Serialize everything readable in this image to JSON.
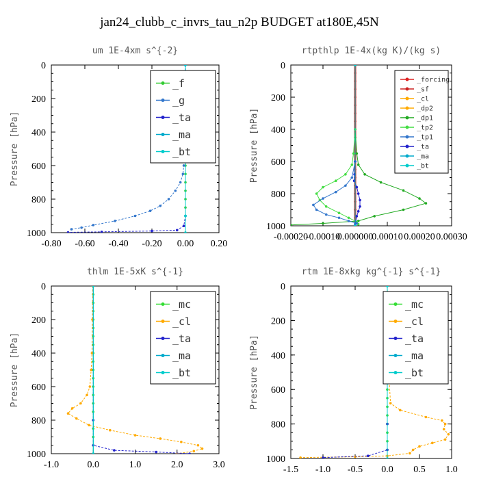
{
  "figure": {
    "title": "jan24_clubb_c_invrs_tau_n2p  BUDGET at180E,45N"
  },
  "colors": {
    "forcing": "#dd2222",
    "sf": "#cc2222",
    "cl": "#ffaa00",
    "dp2": "#ffaa00",
    "dp1": "#22aa22",
    "tp2": "#44dd44",
    "tp1": "#3377cc",
    "ta": "#2222cc",
    "ma": "#00aacc",
    "bt": "#00cccc",
    "mc": "#33dd33",
    "f": "#33cc33",
    "g": "#3377cc",
    "axis": "#000000",
    "text": "#555555"
  },
  "chart_data": [
    {
      "type": "line",
      "title": "um   1E-4xm s^{-2}",
      "ylabel": "Pressure [hPa]",
      "xlabel": "",
      "xlim": [
        -0.8,
        0.2
      ],
      "ylim": [
        1000,
        0
      ],
      "xticks": [
        -0.8,
        -0.6,
        -0.4,
        -0.2,
        0.0,
        0.2
      ],
      "xtick_labels": [
        "-0.80",
        "-0.60",
        "-0.40",
        "-0.20",
        "0.00",
        "0.20"
      ],
      "yticks": [
        0,
        200,
        400,
        600,
        800,
        1000
      ],
      "ytick_labels": [
        "0",
        "200",
        "400",
        "600",
        "800",
        "1000"
      ],
      "legend_position": "top-right",
      "legend_font": 15,
      "series": [
        {
          "name": "_f",
          "key": "f",
          "x": [
            0,
            0,
            0,
            0,
            0,
            0,
            0,
            0,
            0,
            0,
            0,
            0,
            0,
            0,
            0,
            0,
            0,
            0,
            0,
            0
          ],
          "y": [
            0,
            50,
            100,
            150,
            200,
            250,
            300,
            350,
            400,
            450,
            500,
            550,
            600,
            650,
            700,
            750,
            800,
            850,
            900,
            1000
          ]
        },
        {
          "name": "_g",
          "key": "g",
          "x": [
            -0.002,
            -0.002,
            -0.002,
            -0.003,
            -0.004,
            -0.006,
            -0.01,
            -0.015,
            -0.03,
            -0.06,
            -0.1,
            -0.15,
            -0.21,
            -0.3,
            -0.42,
            -0.55,
            -0.62,
            -0.68
          ],
          "y": [
            0,
            100,
            200,
            300,
            400,
            500,
            600,
            650,
            700,
            750,
            800,
            840,
            870,
            900,
            930,
            955,
            970,
            980
          ]
        },
        {
          "name": "_ta",
          "key": "ta",
          "x": [
            0,
            0,
            0,
            -0.01,
            -0.05,
            -0.2,
            -0.5,
            -0.7
          ],
          "y": [
            0,
            500,
            900,
            960,
            985,
            990,
            995,
            998
          ]
        },
        {
          "name": "_ma",
          "key": "ma",
          "x": [
            0,
            0,
            0,
            0
          ],
          "y": [
            0,
            500,
            900,
            1000
          ]
        },
        {
          "name": "_bt",
          "key": "bt",
          "x": [
            0,
            0,
            0,
            0
          ],
          "y": [
            0,
            500,
            900,
            1000
          ]
        }
      ]
    },
    {
      "type": "line",
      "title": "rtpthlp   1E-4x(kg K)/(kg s)",
      "ylabel": "Pressure [hPa]",
      "xlabel": "",
      "xlim": [
        -0.0002,
        0.0003
      ],
      "ylim": [
        1000,
        0
      ],
      "xticks": [
        -0.0002,
        -0.0001,
        0.0,
        0.0001,
        0.0002,
        0.0003
      ],
      "xtick_labels": [
        "-0.00020",
        "-0.00010",
        "0.000000",
        "0.00010",
        "0.00020",
        "0.00030"
      ],
      "yticks": [
        0,
        200,
        400,
        600,
        800,
        1000
      ],
      "ytick_labels": [
        "0",
        "200",
        "400",
        "600",
        "800",
        "1000"
      ],
      "legend_position": "top-right",
      "legend_font": 10,
      "series": [
        {
          "name": "_forcing",
          "key": "forcing",
          "x": [
            0,
            0,
            0,
            0
          ],
          "y": [
            0,
            500,
            900,
            1000
          ]
        },
        {
          "name": "_sf",
          "key": "sf",
          "x": [
            0,
            0,
            0,
            0,
            0,
            0,
            0,
            0,
            0,
            0,
            0,
            0,
            0,
            0,
            0,
            0,
            0,
            0,
            0,
            0,
            0
          ],
          "y": [
            0,
            50,
            100,
            150,
            200,
            250,
            300,
            350,
            400,
            450,
            500,
            550,
            600,
            650,
            700,
            750,
            800,
            850,
            900,
            950,
            1000
          ]
        },
        {
          "name": "_cl",
          "key": "cl",
          "x": [
            0,
            0
          ],
          "y": [
            0,
            1000
          ]
        },
        {
          "name": "_dp2",
          "key": "dp2",
          "x": [
            0,
            0
          ],
          "y": [
            0,
            1000
          ]
        },
        {
          "name": "_dp1",
          "key": "dp1",
          "x": [
            0,
            0,
            5e-06,
            1e-05,
            3e-05,
            8e-05,
            0.00015,
            0.0002,
            0.00022,
            0.00015,
            6e-05,
            1e-05,
            -0.0001,
            -0.0002
          ],
          "y": [
            0,
            400,
            550,
            620,
            680,
            730,
            780,
            830,
            860,
            900,
            940,
            970,
            985,
            995
          ]
        },
        {
          "name": "_tp2",
          "key": "tp2",
          "x": [
            0,
            0,
            -5e-06,
            -1e-05,
            -3e-05,
            -6e-05,
            -0.0001,
            -0.00012,
            -0.00011,
            -9e-05,
            -5e-05,
            -2e-05,
            5e-06,
            1e-05
          ],
          "y": [
            0,
            400,
            550,
            620,
            680,
            720,
            760,
            800,
            840,
            880,
            920,
            950,
            975,
            990
          ]
        },
        {
          "name": "_tp1",
          "key": "tp1",
          "x": [
            0,
            0,
            -1e-05,
            -3e-05,
            -6e-05,
            -0.0001,
            -0.00013,
            -0.00012,
            -9e-05,
            -5e-05,
            -2e-05,
            5e-06
          ],
          "y": [
            0,
            600,
            700,
            750,
            790,
            830,
            870,
            900,
            930,
            950,
            970,
            985
          ]
        },
        {
          "name": "_ta",
          "key": "ta",
          "x": [
            0,
            0,
            -2e-06,
            -3e-06,
            5e-06,
            1e-05,
            1.5e-05,
            1.5e-05,
            1e-05,
            5e-06,
            0
          ],
          "y": [
            0,
            600,
            680,
            720,
            760,
            800,
            840,
            880,
            910,
            940,
            990
          ]
        },
        {
          "name": "_ma",
          "key": "ma",
          "x": [
            0,
            0
          ],
          "y": [
            0,
            1000
          ]
        },
        {
          "name": "_bt",
          "key": "bt",
          "x": [
            0,
            0
          ],
          "y": [
            0,
            1000
          ]
        }
      ]
    },
    {
      "type": "line",
      "title": "thlm   1E-5xK s^{-1}",
      "ylabel": "Pressure [hPa]",
      "xlabel": "",
      "xlim": [
        -1.0,
        3.0
      ],
      "ylim": [
        1000,
        0
      ],
      "xticks": [
        -1.0,
        0.0,
        1.0,
        2.0,
        3.0
      ],
      "xtick_labels": [
        "-1.0",
        "0.0",
        "1.0",
        "2.0",
        "3.0"
      ],
      "yticks": [
        0,
        200,
        400,
        600,
        800,
        1000
      ],
      "ytick_labels": [
        "0",
        "200",
        "400",
        "600",
        "800",
        "1000"
      ],
      "legend_position": "top-right",
      "legend_font": 15,
      "series": [
        {
          "name": "_mc",
          "key": "mc",
          "x": [
            0,
            0,
            0,
            0,
            0,
            0,
            0,
            0,
            0,
            0,
            0,
            0,
            0,
            0,
            0,
            0,
            0,
            0,
            0,
            0,
            0
          ],
          "y": [
            0,
            50,
            100,
            150,
            200,
            250,
            300,
            350,
            400,
            450,
            500,
            550,
            600,
            650,
            700,
            750,
            800,
            850,
            900,
            950,
            1000
          ]
        },
        {
          "name": "_cl",
          "key": "cl",
          "x": [
            -0.01,
            -0.02,
            -0.03,
            -0.05,
            -0.08,
            -0.15,
            -0.3,
            -0.5,
            -0.6,
            -0.4,
            -0.1,
            0.4,
            1.0,
            1.6,
            2.1,
            2.5,
            2.6,
            2.4,
            2.0
          ],
          "y": [
            0,
            200,
            400,
            500,
            600,
            650,
            700,
            730,
            760,
            790,
            830,
            860,
            890,
            910,
            930,
            950,
            970,
            985,
            1000
          ]
        },
        {
          "name": "_ta",
          "key": "ta",
          "x": [
            0,
            0,
            0,
            0.5,
            1.5,
            2.3
          ],
          "y": [
            0,
            800,
            950,
            980,
            990,
            1000
          ]
        },
        {
          "name": "_ma",
          "key": "ma",
          "x": [
            0,
            0
          ],
          "y": [
            0,
            1000
          ]
        },
        {
          "name": "_bt",
          "key": "bt",
          "x": [
            0,
            0
          ],
          "y": [
            0,
            1000
          ]
        }
      ]
    },
    {
      "type": "line",
      "title": "rtm   1E-8xkg kg^{-1} s^{-1}",
      "ylabel": "Pressure [hPa]",
      "xlabel": "",
      "xlim": [
        -1.5,
        1.0
      ],
      "ylim": [
        1000,
        0
      ],
      "xticks": [
        -1.5,
        -1.0,
        -0.5,
        0.0,
        0.5,
        1.0
      ],
      "xtick_labels": [
        "-1.5",
        "-1.0",
        "-0.5",
        "0.0",
        "0.5",
        "1.0"
      ],
      "yticks": [
        0,
        200,
        400,
        600,
        800,
        1000
      ],
      "ytick_labels": [
        "0",
        "200",
        "400",
        "600",
        "800",
        "1000"
      ],
      "legend_position": "top-right",
      "legend_font": 15,
      "series": [
        {
          "name": "_mc",
          "key": "mc",
          "x": [
            0,
            0,
            0,
            0,
            0,
            0,
            0,
            0,
            0,
            0,
            0,
            0,
            0,
            0,
            0,
            0,
            0,
            0,
            0,
            0,
            0
          ],
          "y": [
            0,
            50,
            100,
            150,
            200,
            250,
            300,
            350,
            400,
            450,
            500,
            550,
            600,
            650,
            700,
            750,
            800,
            850,
            900,
            950,
            1000
          ]
        },
        {
          "name": "_cl",
          "key": "cl",
          "x": [
            0,
            0.01,
            0.02,
            0.03,
            0.05,
            0.2,
            0.6,
            0.85,
            0.9,
            0.88,
            0.95,
            0.9,
            0.7,
            0.5,
            0.4,
            0.35,
            0,
            -0.5,
            -1.35
          ],
          "y": [
            0,
            200,
            400,
            550,
            680,
            720,
            760,
            780,
            800,
            830,
            860,
            890,
            910,
            930,
            950,
            970,
            985,
            990,
            995
          ]
        },
        {
          "name": "_ta",
          "key": "ta",
          "x": [
            0,
            0,
            0,
            -0.3,
            -1.0
          ],
          "y": [
            0,
            800,
            950,
            985,
            995
          ]
        },
        {
          "name": "_ma",
          "key": "ma",
          "x": [
            0,
            0
          ],
          "y": [
            0,
            1000
          ]
        },
        {
          "name": "_bt",
          "key": "bt",
          "x": [
            0,
            0
          ],
          "y": [
            0,
            1000
          ]
        }
      ]
    }
  ]
}
